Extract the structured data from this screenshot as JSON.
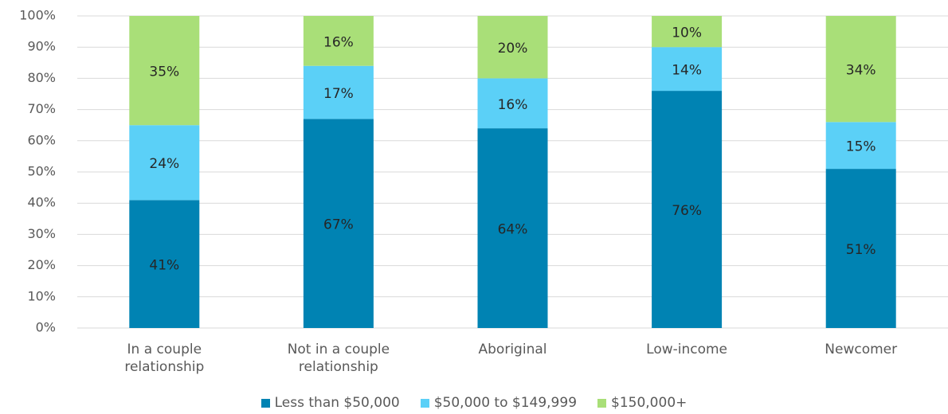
{
  "chart_data": {
    "type": "stacked_bar",
    "categories": [
      "In a couple relationship",
      "Not in a couple relationship",
      "Aboriginal",
      "Low-income",
      "Newcomer"
    ],
    "series": [
      {
        "name": "Less than $50,000",
        "color": "#0083b3",
        "values": [
          41,
          67,
          64,
          76,
          51
        ],
        "value_labels": [
          "41%",
          "67%",
          "64%",
          "76%",
          "51%"
        ]
      },
      {
        "name": "$50,000 to $149,999",
        "color": "#5bd0f7",
        "values": [
          24,
          17,
          16,
          14,
          15
        ],
        "value_labels": [
          "24%",
          "17%",
          "16%",
          "14%",
          "15%"
        ]
      },
      {
        "name": "$150,000+",
        "color": "#a9df78",
        "values": [
          35,
          16,
          20,
          10,
          34
        ],
        "value_labels": [
          "35%",
          "16%",
          "20%",
          "10%",
          "34%"
        ]
      }
    ],
    "ylim": [
      0,
      100
    ],
    "yticks": [
      {
        "value": 0,
        "label": "0%"
      },
      {
        "value": 10,
        "label": "10%"
      },
      {
        "value": 20,
        "label": "20%"
      },
      {
        "value": 30,
        "label": "30%"
      },
      {
        "value": 40,
        "label": "40%"
      },
      {
        "value": 50,
        "label": "50%"
      },
      {
        "value": 60,
        "label": "60%"
      },
      {
        "value": 70,
        "label": "70%"
      },
      {
        "value": 80,
        "label": "80%"
      },
      {
        "value": 90,
        "label": "90%"
      },
      {
        "value": 100,
        "label": "100%"
      }
    ],
    "grid": true,
    "legend": "bottom"
  }
}
